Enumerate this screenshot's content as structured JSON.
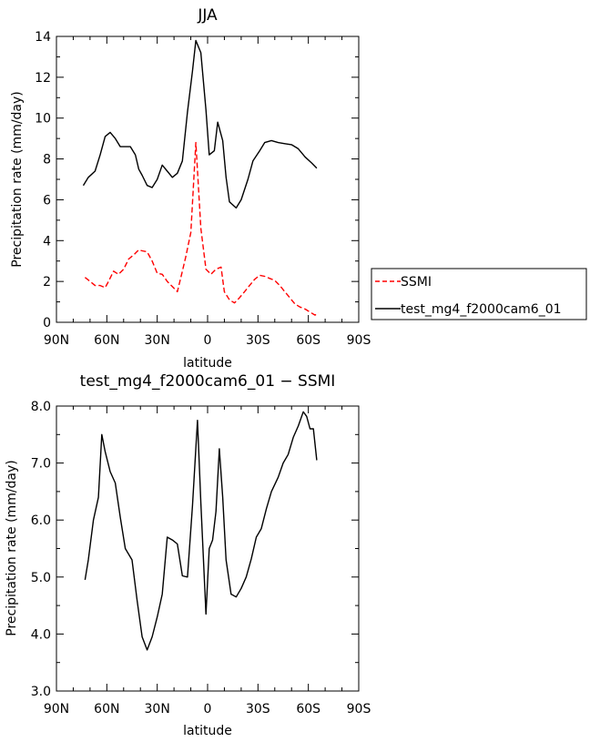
{
  "chart_data": [
    {
      "type": "line",
      "title": "JJA",
      "xlabel": "latitude",
      "ylabel": "Precipitation rate (mm/day)",
      "xlim": [
        90,
        -90
      ],
      "ylim": [
        0,
        14
      ],
      "xticks": [
        90,
        60,
        30,
        0,
        -30,
        -60,
        -90
      ],
      "xtick_labels": [
        "90N",
        "60N",
        "30N",
        "0",
        "30S",
        "60S",
        "90S"
      ],
      "yticks": [
        0,
        2,
        4,
        6,
        8,
        10,
        12,
        14
      ],
      "ytick_labels": [
        "0",
        "2",
        "4",
        "6",
        "8",
        "10",
        "12",
        "14"
      ],
      "grid": false,
      "legend_position": "right",
      "series": [
        {
          "name": "SSMI",
          "color": "#ff0000",
          "dash": "dashed",
          "x": [
            73,
            70,
            67,
            64,
            61,
            59,
            56,
            53,
            50,
            47,
            44,
            41,
            39,
            36,
            33,
            30,
            27,
            24,
            21,
            18,
            15,
            13,
            10,
            7,
            4,
            1,
            -2,
            -5,
            -8,
            -10,
            -13,
            -16,
            -19,
            -22,
            -25,
            -28,
            -31,
            -34,
            -37,
            -40,
            -43,
            -46,
            -49,
            -52,
            -55,
            -58,
            -61,
            -64,
            -66
          ],
          "y": [
            2.2,
            2.0,
            1.8,
            1.8,
            1.7,
            2.0,
            2.5,
            2.35,
            2.6,
            3.1,
            3.3,
            3.55,
            3.5,
            3.45,
            3.0,
            2.4,
            2.35,
            2.0,
            1.75,
            1.5,
            2.5,
            3.2,
            4.4,
            8.8,
            4.6,
            2.6,
            2.35,
            2.6,
            2.7,
            1.5,
            1.1,
            0.95,
            1.2,
            1.5,
            1.8,
            2.1,
            2.3,
            2.25,
            2.15,
            2.05,
            1.8,
            1.5,
            1.2,
            0.9,
            0.75,
            0.65,
            0.5,
            0.35,
            0.45
          ]
        },
        {
          "name": "test_mg4_f2000cam6_01",
          "color": "#000000",
          "dash": "solid",
          "x": [
            74,
            71,
            67,
            64,
            61,
            58,
            55,
            52,
            48,
            46,
            43,
            41,
            39,
            36,
            33,
            30,
            27,
            24,
            21,
            18,
            15,
            12,
            9,
            7,
            4,
            1,
            -1,
            -4,
            -6,
            -9,
            -11,
            -13,
            -17,
            -20,
            -24,
            -27,
            -31,
            -34,
            -38,
            -42,
            -46,
            -50,
            -54,
            -58,
            -62,
            -65
          ],
          "y": [
            6.7,
            7.1,
            7.4,
            8.2,
            9.1,
            9.3,
            9.0,
            8.6,
            8.6,
            8.6,
            8.2,
            7.5,
            7.2,
            6.7,
            6.6,
            7.0,
            7.7,
            7.4,
            7.1,
            7.3,
            7.9,
            10.3,
            12.3,
            13.8,
            13.2,
            10.4,
            8.2,
            8.4,
            9.8,
            8.9,
            7.1,
            5.9,
            5.6,
            6.0,
            7.0,
            7.9,
            8.4,
            8.8,
            8.9,
            8.8,
            8.75,
            8.7,
            8.5,
            8.1,
            7.8,
            7.55
          ]
        }
      ]
    },
    {
      "type": "line",
      "title": "test_mg4_f2000cam6_01 − SSMI",
      "xlabel": "latitude",
      "ylabel": "Precipitation rate (mm/day)",
      "xlim": [
        90,
        -90
      ],
      "ylim": [
        3.0,
        8.0
      ],
      "xticks": [
        90,
        60,
        30,
        0,
        -30,
        -60,
        -90
      ],
      "xtick_labels": [
        "90N",
        "60N",
        "30N",
        "0",
        "30S",
        "60S",
        "90S"
      ],
      "yticks": [
        3,
        4,
        5,
        6,
        7,
        8
      ],
      "ytick_labels": [
        "3.0",
        "4.0",
        "5.0",
        "6.0",
        "7.0",
        "8.0"
      ],
      "grid": false,
      "series": [
        {
          "color": "#000000",
          "dash": "solid",
          "x": [
            73,
            71,
            68,
            65,
            63,
            61,
            58,
            55,
            52,
            49,
            45,
            42,
            39,
            36,
            33,
            30,
            27,
            24,
            21,
            18,
            15,
            12,
            9,
            6,
            4,
            1,
            -1,
            -3,
            -5,
            -7,
            -9,
            -11,
            -14,
            -17,
            -20,
            -23,
            -26,
            -29,
            -32,
            -35,
            -38,
            -42,
            -45,
            -48,
            -51,
            -54,
            -57,
            -59,
            -61,
            -63,
            -65
          ],
          "y": [
            4.95,
            5.3,
            6.0,
            6.4,
            7.5,
            7.2,
            6.85,
            6.65,
            6.05,
            5.5,
            5.3,
            4.6,
            3.95,
            3.72,
            3.95,
            4.3,
            4.7,
            5.7,
            5.65,
            5.58,
            5.02,
            5.0,
            6.25,
            7.75,
            6.3,
            4.35,
            5.5,
            5.65,
            6.15,
            7.25,
            6.4,
            5.3,
            4.7,
            4.65,
            4.8,
            5.0,
            5.32,
            5.7,
            5.85,
            6.2,
            6.5,
            6.75,
            7.0,
            7.15,
            7.45,
            7.65,
            7.9,
            7.82,
            7.6,
            7.6,
            7.05
          ]
        }
      ]
    }
  ]
}
